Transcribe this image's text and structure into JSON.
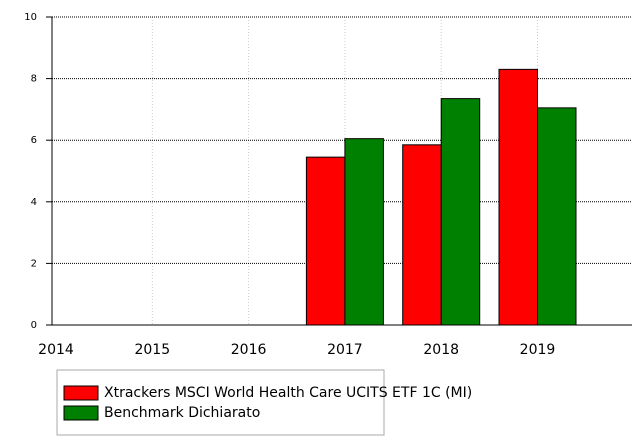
{
  "chart_data": {
    "type": "bar",
    "categories": [
      "2014",
      "2015",
      "2016",
      "2017",
      "2018",
      "2019"
    ],
    "series": [
      {
        "name": "Xtrackers MSCI World Health Care UCITS ETF 1C (MI)",
        "color": "#ff0000",
        "values": [
          null,
          null,
          null,
          5.45,
          5.85,
          8.3
        ]
      },
      {
        "name": "Benchmark Dichiarato",
        "color": "#008000",
        "values": [
          null,
          null,
          null,
          6.05,
          7.35,
          7.05
        ]
      }
    ],
    "ylim": [
      0,
      10
    ],
    "yticks": [
      0,
      2,
      4,
      6,
      8,
      10
    ],
    "grid": true
  }
}
